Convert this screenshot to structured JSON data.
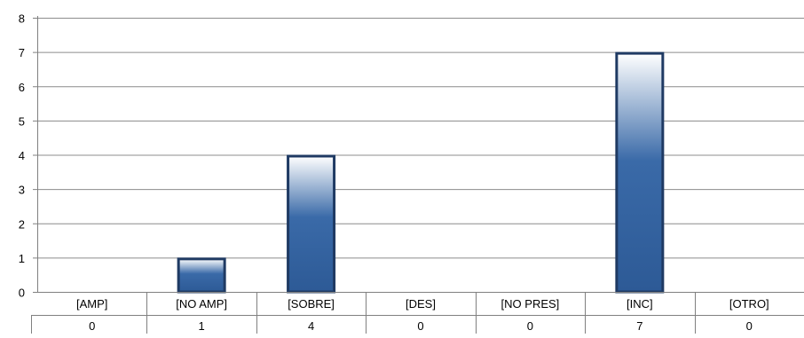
{
  "chart_data": {
    "type": "bar",
    "categories": [
      "[AMP]",
      "[NO AMP]",
      "[SOBRE]",
      "[DES]",
      "[NO PRES]",
      "[INC]",
      "[OTRO]"
    ],
    "values": [
      0,
      1,
      4,
      0,
      0,
      7,
      0
    ],
    "table_values": [
      "0",
      "1",
      "4",
      "0",
      "0",
      "7",
      "0"
    ],
    "y_ticks": [
      "0",
      "1",
      "2",
      "3",
      "4",
      "5",
      "6",
      "7",
      "8"
    ],
    "ylim": [
      0,
      8
    ],
    "grid": true,
    "legend": "none",
    "title": "",
    "xlabel": "",
    "ylabel": "",
    "colors": {
      "bar_dark": "#2d5a96",
      "bar_mid": "#3a6aa8",
      "bar_light": "#ffffff",
      "bar_border": "#1f3a63",
      "gridline": "#8c8c8c",
      "axis": "#808080"
    }
  }
}
